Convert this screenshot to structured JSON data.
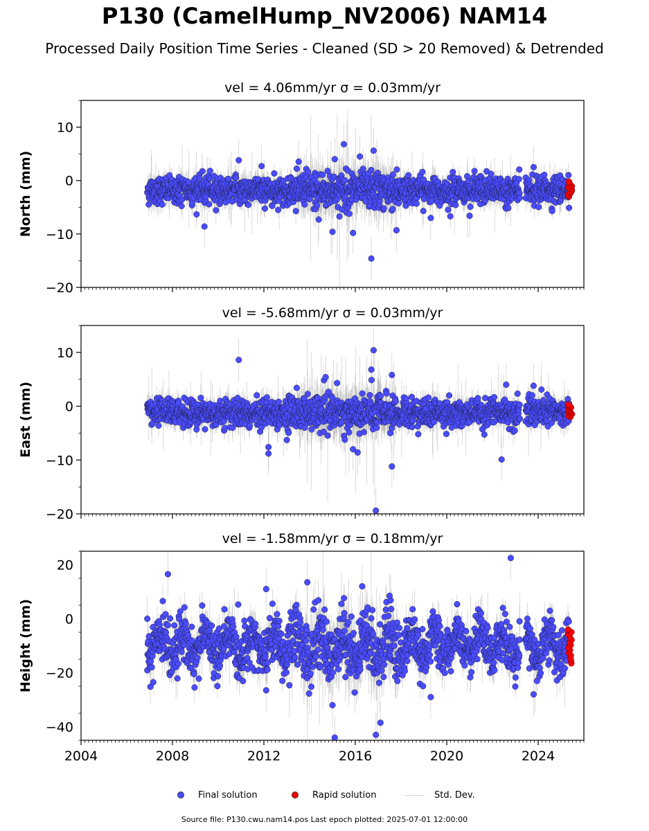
{
  "page": {
    "title": "P130 (CamelHump_NV2006) NAM14",
    "subtitle": "Processed Daily Position Time Series - Cleaned (SD > 20 Removed) & Detrended",
    "footer": "Source file: P130.cwu.nam14.pos  Last epoch plotted: 2025-07-01 12:00:00"
  },
  "legend": {
    "final": "Final solution",
    "rapid": "Rapid solution",
    "std": "Std. Dev."
  },
  "colors": {
    "final": "#4a4cff",
    "rapid": "#ff0000",
    "std": "#bdbdbd"
  },
  "chart_data": [
    {
      "type": "scatter",
      "title": "vel = 4.06mm/yr   σ = 0.03mm/yr",
      "ylabel": "North (mm)",
      "xlim": [
        2004,
        2026
      ],
      "ylim": [
        -20,
        15
      ],
      "yticks": [
        -20,
        -10,
        0,
        10
      ],
      "xticks": [
        2004,
        2008,
        2012,
        2016,
        2020,
        2024
      ],
      "show_xtick_labels": false,
      "final_solution": {
        "time_range": [
          2006.9,
          2025.35
        ],
        "mean": -1.8,
        "scatter_sd": 1.3,
        "outliers": [
          {
            "x": 2009.4,
            "y": -8.6
          },
          {
            "x": 2010.9,
            "y": 3.8
          },
          {
            "x": 2011.9,
            "y": 2.7
          },
          {
            "x": 2014.4,
            "y": -7.3
          },
          {
            "x": 2015.0,
            "y": -9.6
          },
          {
            "x": 2015.1,
            "y": 4.0
          },
          {
            "x": 2015.5,
            "y": 6.8
          },
          {
            "x": 2015.9,
            "y": -9.8
          },
          {
            "x": 2016.2,
            "y": 4.5
          },
          {
            "x": 2016.7,
            "y": -14.6
          },
          {
            "x": 2016.8,
            "y": 5.6
          },
          {
            "x": 2017.8,
            "y": -9.3
          },
          {
            "x": 2019.3,
            "y": -7.0
          },
          {
            "x": 2021.0,
            "y": -6.6
          },
          {
            "x": 2023.8,
            "y": 2.5
          }
        ]
      },
      "rapid_solution": {
        "time_range": [
          2025.3,
          2025.5
        ],
        "y_range": [
          -3.0,
          -0.2
        ]
      }
    },
    {
      "type": "scatter",
      "title": "vel = -5.68mm/yr   σ = 0.03mm/yr",
      "ylabel": "East (mm)",
      "xlim": [
        2004,
        2026
      ],
      "ylim": [
        -20,
        15
      ],
      "yticks": [
        -20,
        -10,
        0,
        10
      ],
      "xticks": [
        2004,
        2008,
        2012,
        2016,
        2020,
        2024
      ],
      "show_xtick_labels": false,
      "final_solution": {
        "time_range": [
          2006.9,
          2025.35
        ],
        "mean": -1.2,
        "scatter_sd": 1.3,
        "outliers": [
          {
            "x": 2010.9,
            "y": 8.6
          },
          {
            "x": 2012.2,
            "y": -7.6
          },
          {
            "x": 2012.2,
            "y": -8.8
          },
          {
            "x": 2014.7,
            "y": 5.4
          },
          {
            "x": 2015.2,
            "y": 4.3
          },
          {
            "x": 2015.9,
            "y": -8.0
          },
          {
            "x": 2016.1,
            "y": -8.6
          },
          {
            "x": 2016.8,
            "y": 10.4
          },
          {
            "x": 2016.9,
            "y": -19.4
          },
          {
            "x": 2016.7,
            "y": 6.8
          },
          {
            "x": 2017.6,
            "y": 5.8
          },
          {
            "x": 2017.6,
            "y": -11.2
          },
          {
            "x": 2022.4,
            "y": -9.9
          },
          {
            "x": 2022.6,
            "y": 4.0
          },
          {
            "x": 2023.8,
            "y": 3.8
          }
        ]
      },
      "rapid_solution": {
        "time_range": [
          2025.3,
          2025.5
        ],
        "y_range": [
          -2.0,
          0.3
        ]
      }
    },
    {
      "type": "scatter",
      "title": "vel = -1.58mm/yr   σ = 0.18mm/yr",
      "ylabel": "Height (mm)",
      "xlim": [
        2004,
        2026
      ],
      "ylim": [
        -45,
        25
      ],
      "yticks": [
        -40,
        -20,
        0,
        20
      ],
      "xticks": [
        2004,
        2008,
        2012,
        2016,
        2020,
        2024
      ],
      "show_xtick_labels": true,
      "final_solution": {
        "time_range": [
          2006.9,
          2025.35
        ],
        "mean": -10.0,
        "scatter_sd": 4.5,
        "seasonal_amplitude": 4.5,
        "outliers": [
          {
            "x": 2006.9,
            "y": 0.0
          },
          {
            "x": 2007.8,
            "y": 16.5
          },
          {
            "x": 2012.1,
            "y": 11.0
          },
          {
            "x": 2012.1,
            "y": -26.5
          },
          {
            "x": 2013.9,
            "y": 13.5
          },
          {
            "x": 2015.0,
            "y": -32.0
          },
          {
            "x": 2015.1,
            "y": -44.0
          },
          {
            "x": 2016.3,
            "y": 12.0
          },
          {
            "x": 2016.9,
            "y": -43.0
          },
          {
            "x": 2017.1,
            "y": -38.5
          },
          {
            "x": 2017.5,
            "y": 8.5
          },
          {
            "x": 2019.3,
            "y": -29.0
          },
          {
            "x": 2022.8,
            "y": 22.5
          },
          {
            "x": 2023.8,
            "y": -28.0
          }
        ]
      },
      "rapid_solution": {
        "time_range": [
          2025.3,
          2025.5
        ],
        "y_range": [
          -16.5,
          -4.0
        ]
      }
    }
  ]
}
